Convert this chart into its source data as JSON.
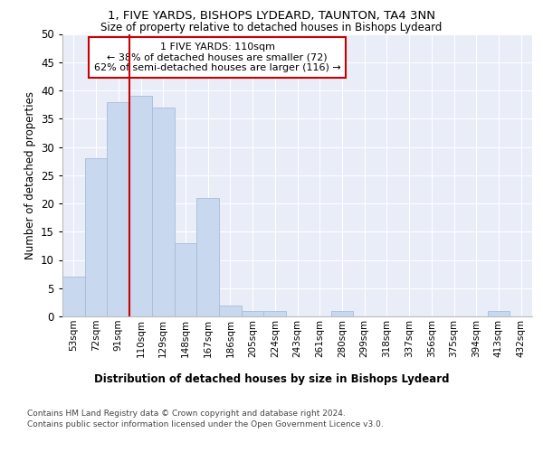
{
  "title1": "1, FIVE YARDS, BISHOPS LYDEARD, TAUNTON, TA4 3NN",
  "title2": "Size of property relative to detached houses in Bishops Lydeard",
  "xlabel": "Distribution of detached houses by size in Bishops Lydeard",
  "ylabel": "Number of detached properties",
  "categories": [
    "53sqm",
    "72sqm",
    "91sqm",
    "110sqm",
    "129sqm",
    "148sqm",
    "167sqm",
    "186sqm",
    "205sqm",
    "224sqm",
    "243sqm",
    "261sqm",
    "280sqm",
    "299sqm",
    "318sqm",
    "337sqm",
    "356sqm",
    "375sqm",
    "394sqm",
    "413sqm",
    "432sqm"
  ],
  "values": [
    7,
    28,
    38,
    39,
    37,
    13,
    21,
    2,
    1,
    1,
    0,
    0,
    1,
    0,
    0,
    0,
    0,
    0,
    0,
    1,
    0
  ],
  "bar_color": "#c8d8ee",
  "bar_edge_color": "#a8bcd8",
  "red_line_index": 3,
  "annotation_line1": "1 FIVE YARDS: 110sqm",
  "annotation_line2": "← 38% of detached houses are smaller (72)",
  "annotation_line3": "62% of semi-detached houses are larger (116) →",
  "annotation_box_color": "#ffffff",
  "annotation_box_edge_color": "#cc0000",
  "ylim": [
    0,
    50
  ],
  "yticks": [
    0,
    5,
    10,
    15,
    20,
    25,
    30,
    35,
    40,
    45,
    50
  ],
  "background_color": "#e8edf8",
  "grid_color": "#ffffff",
  "footer1": "Contains HM Land Registry data © Crown copyright and database right 2024.",
  "footer2": "Contains public sector information licensed under the Open Government Licence v3.0."
}
